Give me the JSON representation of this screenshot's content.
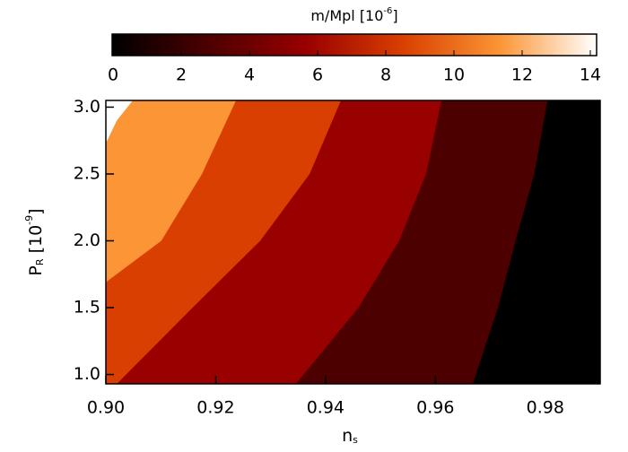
{
  "chart_data": {
    "type": "contour",
    "colorbar": {
      "label": {
        "text": "m/Mpl [10",
        "sup": "-6",
        "end": "]"
      },
      "lim": [
        0,
        14
      ],
      "ticks": [
        0,
        2,
        4,
        6,
        8,
        10,
        12,
        14
      ],
      "colors": [
        "#000000",
        "#4d0000",
        "#990000",
        "#d93f00",
        "#fb9535",
        "#ffffff"
      ]
    },
    "x_label": {
      "text": "n",
      "sub": "s"
    },
    "y_label": {
      "text": "P",
      "sub": "R",
      "mid": " [10",
      "sup": "-9",
      "end": "]"
    },
    "xlim": [
      0.9,
      0.99
    ],
    "ylim": [
      0.93,
      3.05
    ],
    "xticks": [
      {
        "value": 0.9,
        "label": "0.90"
      },
      {
        "value": 0.92,
        "label": "0.92"
      },
      {
        "value": 0.94,
        "label": "0.94"
      },
      {
        "value": 0.96,
        "label": "0.96"
      },
      {
        "value": 0.98,
        "label": "0.98"
      }
    ],
    "yticks": [
      {
        "value": 1,
        "label": "1.0"
      },
      1.5,
      {
        "value": 2,
        "label": "2.0"
      },
      2.5,
      {
        "value": 3,
        "label": "3.0"
      }
    ],
    "base_color": "#000000",
    "contours": [
      {
        "level": 2,
        "color": "#4d0000",
        "x": [
          0.9668,
          0.9714,
          0.9746,
          0.978,
          0.9804
        ],
        "y": [
          0.93,
          1.5,
          2.0,
          2.5,
          3.05
        ]
      },
      {
        "level": 4,
        "color": "#990000",
        "x": [
          0.9346,
          0.946,
          0.9534,
          0.9583,
          0.9611
        ],
        "y": [
          0.93,
          1.5,
          2.0,
          2.5,
          3.05
        ]
      },
      {
        "level": 6,
        "color": "#d93f00",
        "x": [
          0.902,
          0.9158,
          0.9281,
          0.9371,
          0.9428
        ],
        "y": [
          0.93,
          1.5,
          2.0,
          2.5,
          3.05
        ]
      },
      {
        "level": 8,
        "color": "#fb9535",
        "x": [
          0.9,
          0.9101,
          0.9175,
          0.9237
        ],
        "y": [
          1.69,
          2.0,
          2.5,
          3.05
        ]
      },
      {
        "level": 12,
        "color": "#ffffff",
        "x": [
          0.9,
          0.902,
          0.9049
        ],
        "y": [
          2.73,
          2.9,
          3.05
        ]
      }
    ]
  }
}
